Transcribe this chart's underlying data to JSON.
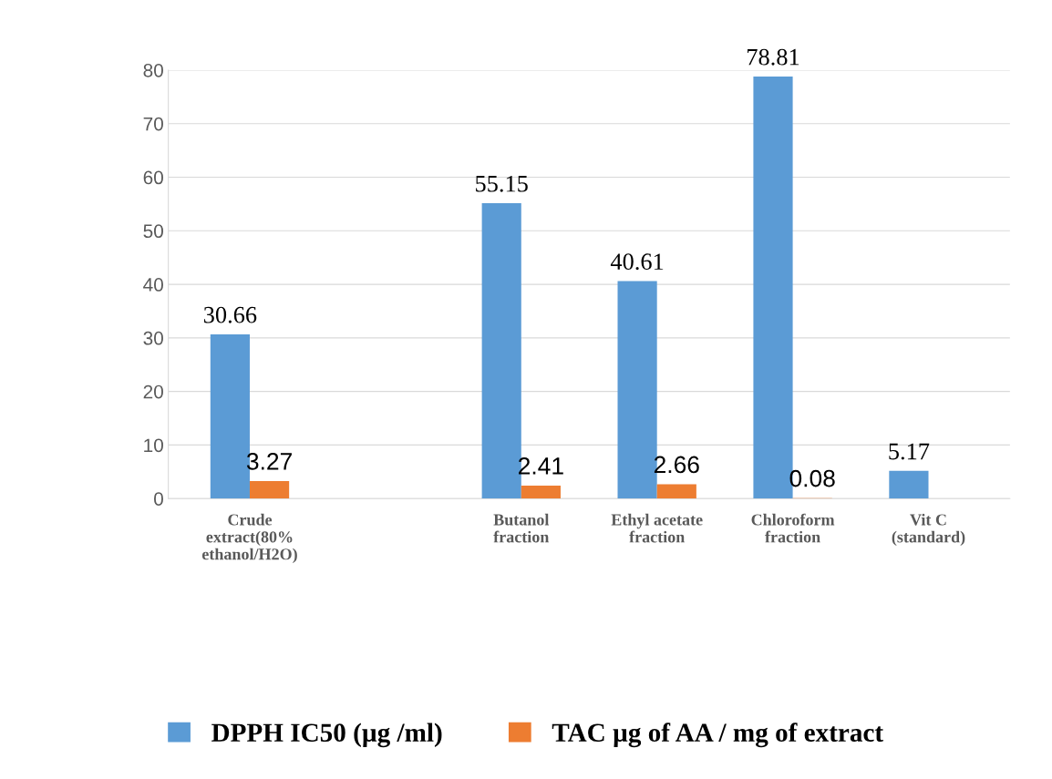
{
  "chart_data": {
    "type": "bar",
    "categories": [
      "Crude\nextract(80%\nethanol/H2O)",
      null,
      "Butanol\nfraction",
      "Ethyl acetate\nfraction",
      "Chloroform\nfraction",
      "Vit C\n(standard)"
    ],
    "series": [
      {
        "name": "DPPH IC50 (µg /ml)",
        "color": "#5b9bd5",
        "values": [
          30.66,
          null,
          55.15,
          40.61,
          78.81,
          5.17
        ]
      },
      {
        "name": "TAC µg of AA / mg of extract",
        "color": "#ed7d31",
        "values": [
          3.27,
          null,
          2.41,
          2.66,
          0.08,
          null
        ]
      }
    ],
    "ylim": [
      0,
      80
    ],
    "yticks": [
      0,
      10,
      20,
      30,
      40,
      50,
      60,
      70,
      80
    ],
    "grid": "y",
    "legend": "bottom",
    "data_labels": true
  }
}
